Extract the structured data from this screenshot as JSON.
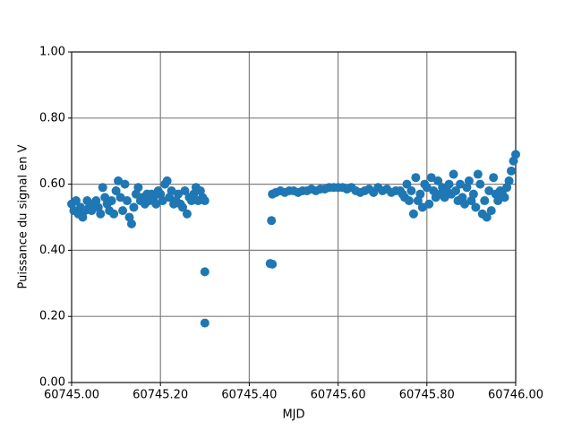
{
  "chart_data": {
    "type": "scatter",
    "x_label": "MJD",
    "y_label": "Puissance du signal en V",
    "xlim": [
      60745.0,
      60746.0
    ],
    "ylim": [
      0,
      1
    ],
    "xticks": [
      {
        "value": 60745.0,
        "label": "60745.00"
      },
      {
        "value": 60745.2,
        "label": "60745.20"
      },
      {
        "value": 60745.4,
        "label": "60745.40"
      },
      {
        "value": 60745.6,
        "label": "60745.60"
      },
      {
        "value": 60745.8,
        "label": "60745.80"
      },
      {
        "value": 60746.0,
        "label": "60746.00"
      }
    ],
    "yticks": [
      {
        "value": 0,
        "label": "0.00"
      },
      {
        "value": 0.2,
        "label": "0.20"
      },
      {
        "value": 0.4,
        "label": "0.40"
      },
      {
        "value": 0.6,
        "label": "0.60"
      },
      {
        "value": 0.8,
        "label": "0.80"
      },
      {
        "value": 1,
        "label": "1.00"
      }
    ],
    "grid": true,
    "series": [
      {
        "color": "#1f77b4",
        "x": [
          60745.0,
          60745.005,
          60745.01,
          60745.015,
          60745.02,
          60745.025,
          60745.03,
          60745.035,
          60745.04,
          60745.045,
          60745.05,
          60745.055,
          60745.06,
          60745.065,
          60745.07,
          60745.075,
          60745.08,
          60745.085,
          60745.09,
          60745.095,
          60745.1,
          60745.105,
          60745.11,
          60745.115,
          60745.12,
          60745.125,
          60745.13,
          60745.135,
          60745.14,
          60745.145,
          60745.15,
          60745.155,
          60745.16,
          60745.165,
          60745.17,
          60745.175,
          60745.18,
          60745.185,
          60745.19,
          60745.195,
          60745.2,
          60745.205,
          60745.21,
          60745.215,
          60745.22,
          60745.225,
          60745.23,
          60745.235,
          60745.24,
          60745.245,
          60745.25,
          60745.255,
          60745.26,
          60745.265,
          60745.27,
          60745.275,
          60745.28,
          60745.285,
          60745.29,
          60745.295,
          60745.3,
          60745.3,
          60745.3,
          60745.45,
          60745.447,
          60745.452,
          60745.452,
          60745.46,
          60745.47,
          60745.48,
          60745.49,
          60745.5,
          60745.51,
          60745.52,
          60745.53,
          60745.54,
          60745.55,
          60745.56,
          60745.57,
          60745.58,
          60745.59,
          60745.6,
          60745.61,
          60745.62,
          60745.63,
          60745.64,
          60745.65,
          60745.66,
          60745.67,
          60745.68,
          60745.69,
          60745.7,
          60745.71,
          60745.72,
          60745.73,
          60745.74,
          60745.745,
          60745.75,
          60745.755,
          60745.76,
          60745.765,
          60745.77,
          60745.775,
          60745.78,
          60745.785,
          60745.79,
          60745.795,
          60745.8,
          60745.805,
          60745.81,
          60745.815,
          60745.82,
          60745.825,
          60745.83,
          60745.835,
          60745.84,
          60745.845,
          60745.85,
          60745.855,
          60745.86,
          60745.865,
          60745.87,
          60745.875,
          60745.88,
          60745.885,
          60745.89,
          60745.895,
          60745.9,
          60745.905,
          60745.91,
          60745.915,
          60745.92,
          60745.925,
          60745.93,
          60745.935,
          60745.94,
          60745.945,
          60745.95,
          60745.955,
          60745.96,
          60745.965,
          60745.97,
          60745.975,
          60745.98,
          60745.985,
          60745.99,
          60745.995,
          60746.0
        ],
        "values": [
          0.54,
          0.52,
          0.55,
          0.51,
          0.53,
          0.5,
          0.52,
          0.55,
          0.53,
          0.52,
          0.54,
          0.55,
          0.53,
          0.51,
          0.59,
          0.56,
          0.54,
          0.52,
          0.55,
          0.51,
          0.58,
          0.61,
          0.56,
          0.52,
          0.6,
          0.55,
          0.5,
          0.48,
          0.53,
          0.57,
          0.59,
          0.55,
          0.56,
          0.54,
          0.57,
          0.55,
          0.57,
          0.56,
          0.54,
          0.58,
          0.57,
          0.55,
          0.6,
          0.61,
          0.56,
          0.58,
          0.54,
          0.55,
          0.57,
          0.54,
          0.53,
          0.58,
          0.51,
          0.56,
          0.55,
          0.57,
          0.59,
          0.55,
          0.58,
          0.56,
          0.55,
          0.335,
          0.18,
          0.49,
          0.36,
          0.358,
          0.57,
          0.575,
          0.58,
          0.575,
          0.58,
          0.58,
          0.575,
          0.58,
          0.58,
          0.585,
          0.58,
          0.585,
          0.585,
          0.59,
          0.59,
          0.59,
          0.59,
          0.585,
          0.59,
          0.58,
          0.575,
          0.58,
          0.585,
          0.575,
          0.59,
          0.58,
          0.585,
          0.575,
          0.58,
          0.58,
          0.57,
          0.56,
          0.6,
          0.55,
          0.58,
          0.51,
          0.62,
          0.55,
          0.57,
          0.53,
          0.6,
          0.59,
          0.54,
          0.62,
          0.58,
          0.56,
          0.61,
          0.57,
          0.59,
          0.56,
          0.58,
          0.6,
          0.57,
          0.63,
          0.58,
          0.55,
          0.6,
          0.56,
          0.54,
          0.59,
          0.61,
          0.55,
          0.57,
          0.53,
          0.63,
          0.6,
          0.51,
          0.55,
          0.5,
          0.58,
          0.52,
          0.62,
          0.57,
          0.55,
          0.58,
          0.57,
          0.56,
          0.59,
          0.61,
          0.64,
          0.67,
          0.69
        ]
      }
    ]
  }
}
